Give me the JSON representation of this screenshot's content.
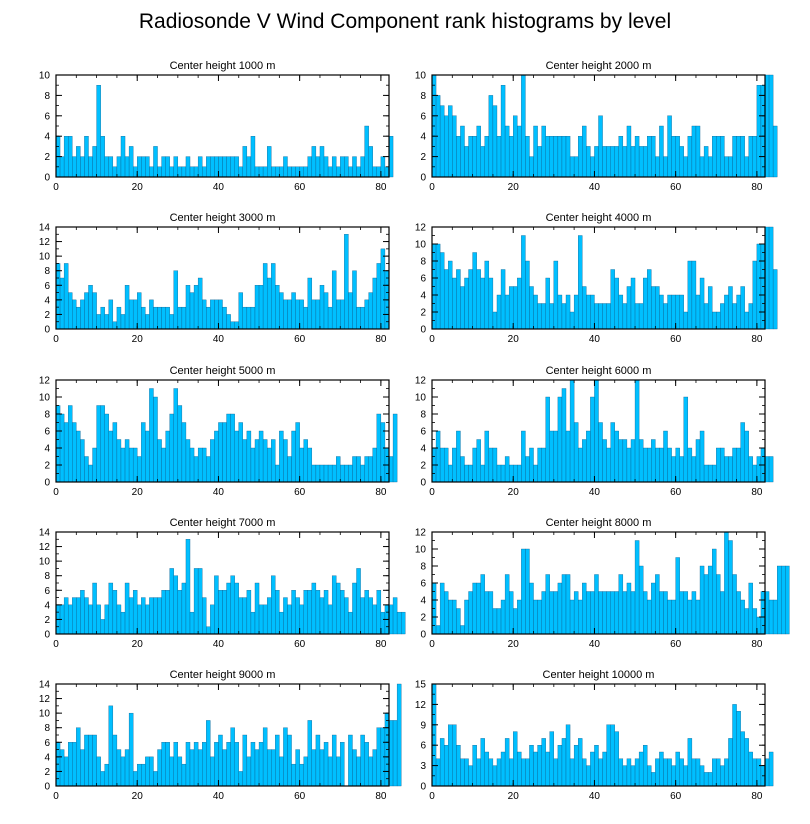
{
  "title": "Radiosonde V Wind Component rank histograms by level",
  "colors": {
    "bar": "#00bfff",
    "bar_edge": "#0a5a8a",
    "axis": "#000000"
  },
  "chart_data": [
    {
      "type": "bar",
      "title": "Center height 1000 m",
      "xlim": [
        0,
        82
      ],
      "ylim": [
        0,
        10
      ],
      "xticks": [
        0,
        20,
        40,
        60,
        80
      ],
      "yticks": [
        0,
        2,
        4,
        6,
        8,
        10
      ],
      "values": [
        4,
        2,
        4,
        4,
        2,
        3,
        2,
        4,
        2,
        3,
        9,
        4,
        2,
        2,
        1,
        2,
        4,
        2,
        3,
        1,
        2,
        2,
        2,
        1,
        3,
        1,
        2,
        2,
        1,
        2,
        1,
        1,
        2,
        1,
        1,
        2,
        1,
        2,
        2,
        2,
        2,
        2,
        2,
        2,
        2,
        1,
        3,
        2,
        4,
        1,
        1,
        1,
        3,
        1,
        1,
        1,
        2,
        1,
        1,
        1,
        1,
        1,
        2,
        3,
        2,
        3,
        2,
        1,
        2,
        1,
        2,
        2,
        1,
        2,
        1,
        2,
        5,
        3,
        1,
        1,
        2,
        1,
        4
      ]
    },
    {
      "type": "bar",
      "title": "Center height 2000 m",
      "xlim": [
        0,
        82
      ],
      "ylim": [
        0,
        10
      ],
      "xticks": [
        0,
        20,
        40,
        60,
        80
      ],
      "yticks": [
        0,
        2,
        4,
        6,
        8,
        10
      ],
      "values": [
        10,
        8,
        7,
        6,
        7,
        6,
        4,
        5,
        3,
        4,
        4,
        5,
        3,
        4,
        8,
        7,
        4,
        9,
        5,
        4,
        6,
        5,
        10,
        4,
        2,
        5,
        3,
        5,
        4,
        4,
        4,
        4,
        4,
        4,
        2,
        2,
        4,
        5,
        3,
        2,
        3,
        6,
        3,
        3,
        3,
        3,
        4,
        3,
        5,
        3,
        4,
        3,
        3,
        4,
        4,
        2,
        5,
        2,
        6,
        4,
        4,
        3,
        2,
        4,
        5,
        5,
        2,
        3,
        2,
        4,
        4,
        4,
        2,
        2,
        4,
        4,
        4,
        2,
        4,
        4,
        9,
        9,
        10,
        10,
        5
      ]
    },
    {
      "type": "bar",
      "title": "Center height 3000 m",
      "xlim": [
        0,
        82
      ],
      "ylim": [
        0,
        14
      ],
      "xticks": [
        0,
        20,
        40,
        60,
        80
      ],
      "yticks": [
        0,
        2,
        4,
        6,
        8,
        10,
        12,
        14
      ],
      "values": [
        9,
        7,
        9,
        5,
        4,
        3,
        4,
        5,
        6,
        5,
        2,
        3,
        2,
        4,
        1,
        3,
        2,
        6,
        4,
        4,
        5,
        3,
        2,
        4,
        3,
        3,
        3,
        3,
        2,
        8,
        3,
        3,
        6,
        5,
        6,
        7,
        4,
        3,
        4,
        4,
        4,
        3,
        2,
        1,
        1,
        5,
        3,
        3,
        3,
        6,
        6,
        9,
        7,
        9,
        6,
        5,
        4,
        4,
        5,
        4,
        4,
        3,
        7,
        4,
        4,
        6,
        5,
        3,
        8,
        4,
        4,
        13,
        5,
        8,
        3,
        3,
        4,
        5,
        7,
        9,
        11,
        8
      ]
    },
    {
      "type": "bar",
      "title": "Center height 4000 m",
      "xlim": [
        0,
        82
      ],
      "ylim": [
        0,
        12
      ],
      "xticks": [
        0,
        20,
        40,
        60,
        80
      ],
      "yticks": [
        0,
        2,
        4,
        6,
        8,
        10,
        12
      ],
      "values": [
        10,
        10,
        9,
        7,
        8,
        6,
        7,
        5,
        6,
        7,
        9,
        7,
        6,
        8,
        6,
        2,
        4,
        7,
        4,
        5,
        5,
        6,
        11,
        8,
        5,
        4,
        3,
        3,
        6,
        3,
        8,
        4,
        3,
        4,
        2,
        4,
        11,
        5,
        4,
        4,
        3,
        3,
        3,
        3,
        7,
        6,
        4,
        3,
        5,
        6,
        3,
        3,
        6,
        7,
        5,
        5,
        4,
        3,
        4,
        4,
        4,
        4,
        2,
        8,
        8,
        4,
        6,
        3,
        5,
        2,
        2,
        3,
        4,
        5,
        3,
        4,
        5,
        2,
        3,
        8,
        10,
        10,
        12,
        12,
        7
      ]
    },
    {
      "type": "bar",
      "title": "Center height 5000 m",
      "xlim": [
        0,
        82
      ],
      "ylim": [
        0,
        12
      ],
      "xticks": [
        0,
        20,
        40,
        60,
        80
      ],
      "yticks": [
        0,
        2,
        4,
        6,
        8,
        10,
        12
      ],
      "values": [
        9,
        8,
        7,
        9,
        7,
        6,
        5,
        3,
        2,
        4,
        9,
        9,
        8,
        6,
        7,
        5,
        4,
        5,
        4,
        4,
        3,
        7,
        6,
        11,
        10,
        5,
        4,
        6,
        8,
        11,
        9,
        7,
        5,
        4,
        3,
        4,
        4,
        3,
        5,
        6,
        7,
        7,
        8,
        8,
        6,
        7,
        5,
        6,
        4,
        5,
        6,
        5,
        4,
        5,
        2,
        6,
        5,
        3,
        6,
        7,
        4,
        5,
        4,
        2,
        2,
        2,
        2,
        2,
        2,
        3,
        2,
        2,
        2,
        3,
        3,
        2,
        3,
        3,
        4,
        8,
        7,
        4,
        3,
        8
      ]
    },
    {
      "type": "bar",
      "title": "Center height 6000 m",
      "xlim": [
        0,
        82
      ],
      "ylim": [
        0,
        12
      ],
      "xticks": [
        0,
        20,
        40,
        60,
        80
      ],
      "yticks": [
        0,
        2,
        4,
        6,
        8,
        10,
        12
      ],
      "values": [
        4,
        6,
        4,
        4,
        2,
        4,
        6,
        3,
        2,
        2,
        4,
        5,
        2,
        6,
        4,
        4,
        2,
        2,
        3,
        2,
        2,
        2,
        6,
        3,
        4,
        2,
        4,
        4,
        10,
        6,
        6,
        10,
        11,
        6,
        12,
        7,
        4,
        5,
        6,
        10,
        12,
        7,
        5,
        4,
        7,
        6,
        5,
        5,
        4,
        5,
        12,
        5,
        4,
        4,
        5,
        4,
        4,
        6,
        4,
        3,
        4,
        3,
        10,
        4,
        3,
        5,
        6,
        2,
        2,
        2,
        4,
        4,
        3,
        3,
        4,
        4,
        7,
        6,
        3,
        2,
        3,
        4,
        3,
        3
      ]
    },
    {
      "type": "bar",
      "title": "Center height 7000 m",
      "xlim": [
        0,
        82
      ],
      "ylim": [
        0,
        14
      ],
      "xticks": [
        0,
        20,
        40,
        60,
        80
      ],
      "yticks": [
        0,
        2,
        4,
        6,
        8,
        10,
        12,
        14
      ],
      "values": [
        4,
        4,
        5,
        4,
        5,
        5,
        6,
        5,
        4,
        7,
        4,
        2,
        4,
        7,
        6,
        4,
        3,
        7,
        5,
        6,
        4,
        5,
        4,
        5,
        5,
        5,
        6,
        6,
        9,
        8,
        6,
        7,
        13,
        3,
        9,
        9,
        5,
        1,
        4,
        8,
        6,
        6,
        7,
        8,
        7,
        5,
        5,
        6,
        3,
        7,
        4,
        4,
        5,
        8,
        6,
        3,
        5,
        4,
        6,
        5,
        4,
        6,
        6,
        7,
        6,
        5,
        6,
        4,
        8,
        7,
        6,
        5,
        3,
        7,
        9,
        5,
        6,
        5,
        4,
        6,
        3,
        4,
        4,
        5,
        3,
        3
      ]
    },
    {
      "type": "bar",
      "title": "Center height 8000 m",
      "xlim": [
        0,
        82
      ],
      "ylim": [
        0,
        12
      ],
      "xticks": [
        0,
        20,
        40,
        60,
        80
      ],
      "yticks": [
        0,
        2,
        4,
        6,
        8,
        10,
        12
      ],
      "values": [
        6,
        1,
        6,
        5,
        4,
        4,
        3,
        1,
        4,
        5,
        6,
        6,
        7,
        5,
        5,
        3,
        3,
        4,
        7,
        5,
        3,
        4,
        10,
        10,
        6,
        4,
        4,
        5,
        7,
        5,
        5,
        6,
        7,
        7,
        4,
        5,
        4,
        6,
        5,
        5,
        7,
        5,
        5,
        5,
        5,
        5,
        7,
        5,
        6,
        5,
        11,
        8,
        5,
        4,
        6,
        7,
        5,
        5,
        4,
        4,
        9,
        5,
        5,
        4,
        5,
        4,
        8,
        7,
        8,
        10,
        7,
        5,
        12,
        11,
        7,
        5,
        4,
        3,
        6,
        3,
        2,
        5,
        5,
        4,
        4,
        8,
        8,
        8
      ]
    },
    {
      "type": "bar",
      "title": "Center height 9000 m",
      "xlim": [
        0,
        82
      ],
      "ylim": [
        0,
        14
      ],
      "xticks": [
        0,
        20,
        40,
        60,
        80
      ],
      "yticks": [
        0,
        2,
        4,
        6,
        8,
        10,
        12,
        14
      ],
      "values": [
        6,
        5,
        4,
        6,
        6,
        8,
        5,
        7,
        7,
        7,
        4,
        2,
        3,
        11,
        7,
        5,
        4,
        5,
        10,
        2,
        3,
        3,
        4,
        4,
        2,
        5,
        6,
        6,
        4,
        6,
        4,
        3,
        6,
        5,
        6,
        5,
        6,
        9,
        4,
        6,
        7,
        5,
        6,
        8,
        6,
        2,
        7,
        4,
        6,
        5,
        6,
        8,
        5,
        5,
        7,
        4,
        8,
        7,
        3,
        5,
        3,
        4,
        9,
        5,
        7,
        5,
        6,
        4,
        7,
        4,
        6,
        0,
        7,
        5,
        4,
        7,
        6,
        4,
        5,
        8,
        8,
        10,
        9,
        9,
        14
      ]
    },
    {
      "type": "bar",
      "title": "Center height 10000 m",
      "xlim": [
        0,
        82
      ],
      "ylim": [
        0,
        15
      ],
      "xticks": [
        0,
        20,
        40,
        60,
        80
      ],
      "yticks": [
        0,
        3,
        6,
        9,
        12,
        15
      ],
      "values": [
        15,
        4,
        7,
        6,
        9,
        9,
        6,
        4,
        4,
        3,
        6,
        4,
        7,
        5,
        4,
        3,
        4,
        5,
        7,
        4,
        8,
        5,
        4,
        4,
        6,
        5,
        6,
        7,
        5,
        8,
        4,
        6,
        7,
        9,
        4,
        6,
        7,
        4,
        3,
        5,
        6,
        4,
        5,
        9,
        9,
        8,
        4,
        3,
        4,
        3,
        4,
        5,
        6,
        3,
        2,
        4,
        5,
        4,
        4,
        3,
        5,
        4,
        3,
        7,
        4,
        4,
        3,
        2,
        2,
        4,
        4,
        3,
        4,
        7,
        12,
        11,
        8,
        7,
        5,
        4,
        4,
        3,
        4,
        5
      ]
    }
  ]
}
